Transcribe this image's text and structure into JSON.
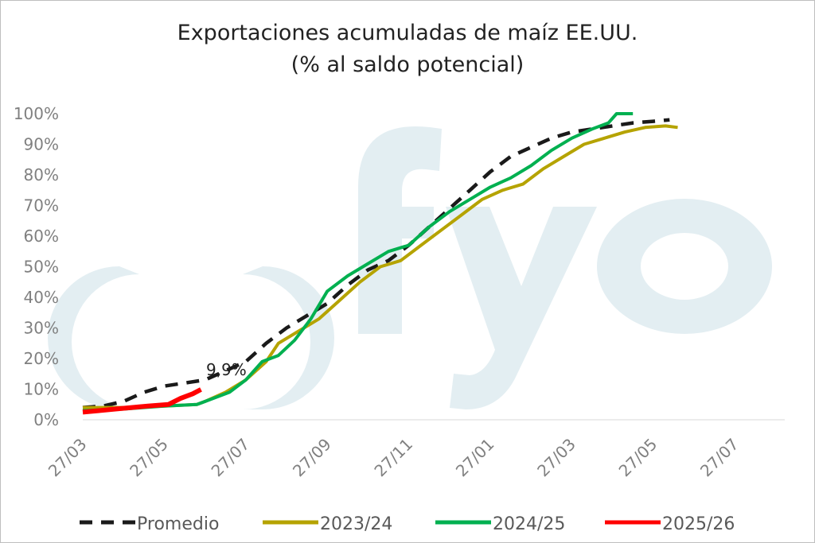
{
  "chart_data": {
    "type": "line",
    "title": "Exportaciones acumuladas de maíz EE.UU.",
    "subtitle": "(% al saldo potencial)",
    "xlabel": "",
    "ylabel": "",
    "x_ticks": [
      "27/03",
      "27/05",
      "27/07",
      "27/09",
      "27/11",
      "27/01",
      "27/03",
      "27/05",
      "27/07"
    ],
    "y_ticks": [
      "0%",
      "10%",
      "20%",
      "30%",
      "40%",
      "50%",
      "60%",
      "70%",
      "80%",
      "90%",
      "100%"
    ],
    "ylim": [
      0,
      100
    ],
    "x_unit": "months since 27/03",
    "xlim": [
      0,
      17.3
    ],
    "grid": false,
    "legend_position": "bottom",
    "watermark": "fyo",
    "annotations": [
      {
        "text": "9,9%",
        "x": 2.85,
        "y": 14.5
      }
    ],
    "series": [
      {
        "name": "Promedio",
        "color": "#1a1a1a",
        "style": "dashed",
        "points": [
          [
            0,
            4
          ],
          [
            0.5,
            4.5
          ],
          [
            1,
            6
          ],
          [
            1.5,
            9
          ],
          [
            2,
            11
          ],
          [
            2.5,
            12
          ],
          [
            3,
            13
          ],
          [
            3.5,
            16
          ],
          [
            4,
            19
          ],
          [
            4.5,
            25
          ],
          [
            5,
            30
          ],
          [
            5.5,
            34
          ],
          [
            6,
            38
          ],
          [
            6.5,
            44
          ],
          [
            7,
            49
          ],
          [
            7.5,
            52
          ],
          [
            8,
            57
          ],
          [
            8.5,
            63
          ],
          [
            9,
            69
          ],
          [
            9.5,
            75
          ],
          [
            10,
            81
          ],
          [
            10.5,
            86
          ],
          [
            11,
            89
          ],
          [
            11.5,
            92
          ],
          [
            12,
            94
          ],
          [
            12.5,
            95
          ],
          [
            13,
            96
          ],
          [
            13.5,
            97
          ],
          [
            14,
            97.5
          ],
          [
            14.4,
            98
          ]
        ]
      },
      {
        "name": "2023/24",
        "color": "#b5a300",
        "style": "solid",
        "points": [
          [
            0,
            4
          ],
          [
            1,
            4
          ],
          [
            2,
            4.5
          ],
          [
            2.8,
            5
          ],
          [
            3,
            6
          ],
          [
            3.5,
            9
          ],
          [
            4,
            13
          ],
          [
            4.5,
            19
          ],
          [
            4.8,
            25
          ],
          [
            5.3,
            29
          ],
          [
            5.8,
            33
          ],
          [
            6.3,
            39
          ],
          [
            6.8,
            45
          ],
          [
            7.3,
            50
          ],
          [
            7.8,
            52
          ],
          [
            8.3,
            57
          ],
          [
            8.8,
            62
          ],
          [
            9.3,
            67
          ],
          [
            9.8,
            72
          ],
          [
            10.3,
            75
          ],
          [
            10.8,
            77
          ],
          [
            11.3,
            82
          ],
          [
            11.8,
            86
          ],
          [
            12.3,
            90
          ],
          [
            12.8,
            92
          ],
          [
            13.3,
            94
          ],
          [
            13.8,
            95.5
          ],
          [
            14.3,
            96
          ],
          [
            14.6,
            95.5
          ]
        ]
      },
      {
        "name": "2024/25",
        "color": "#00b050",
        "style": "solid",
        "points": [
          [
            0,
            3
          ],
          [
            1,
            3.5
          ],
          [
            2,
            4.5
          ],
          [
            2.8,
            5
          ],
          [
            3.2,
            7
          ],
          [
            3.6,
            9
          ],
          [
            4,
            13
          ],
          [
            4.4,
            19
          ],
          [
            4.8,
            21
          ],
          [
            5.2,
            26
          ],
          [
            5.6,
            33
          ],
          [
            6,
            42
          ],
          [
            6.5,
            47
          ],
          [
            7,
            51
          ],
          [
            7.5,
            55
          ],
          [
            8,
            57
          ],
          [
            8.5,
            63
          ],
          [
            9,
            68
          ],
          [
            9.5,
            72
          ],
          [
            10,
            76
          ],
          [
            10.5,
            79
          ],
          [
            11,
            83
          ],
          [
            11.5,
            88
          ],
          [
            12,
            92
          ],
          [
            12.5,
            95
          ],
          [
            12.9,
            97
          ],
          [
            13.1,
            100
          ],
          [
            13.5,
            100
          ]
        ]
      },
      {
        "name": "2025/26",
        "color": "#ff0000",
        "style": "solid",
        "points": [
          [
            0,
            2.5
          ],
          [
            0.4,
            3
          ],
          [
            0.8,
            3.5
          ],
          [
            1.2,
            4
          ],
          [
            1.6,
            4.5
          ],
          [
            2.1,
            5
          ],
          [
            2.4,
            7
          ],
          [
            2.7,
            8.5
          ],
          [
            2.9,
            9.9
          ]
        ]
      }
    ]
  }
}
